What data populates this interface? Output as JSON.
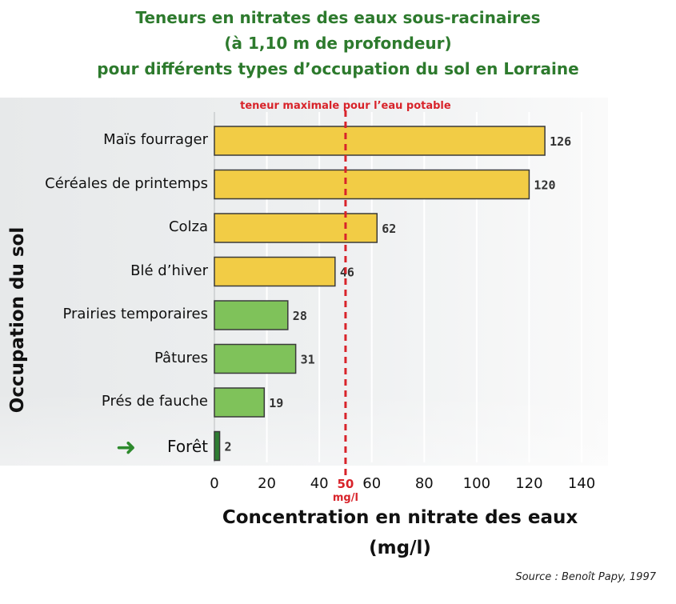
{
  "chart_data": {
    "type": "bar",
    "orientation": "horizontal",
    "title_lines": [
      "Teneurs en nitrates des eaux sous-racinaires",
      "(à 1,10 m de profondeur)",
      "pour différents types d’occupation du sol en Lorraine"
    ],
    "categories": [
      "Maïs fourrager",
      "Céréales de printemps",
      "Colza",
      "Blé d’hiver",
      "Prairies temporaires",
      "Pâtures",
      "Prés de fauche",
      "Forêt"
    ],
    "values": [
      126,
      120,
      62,
      46,
      28,
      31,
      19,
      2
    ],
    "value_labels": [
      "126",
      "120",
      "62",
      "46",
      "28",
      "31",
      "19",
      "2"
    ],
    "bar_colors": [
      "#f2cc45",
      "#f2cc45",
      "#f2cc45",
      "#f2cc45",
      "#7fc25a",
      "#7fc25a",
      "#7fc25a",
      "#2e7d32"
    ],
    "highlight_category": "Forêt",
    "xlim": [
      0,
      140
    ],
    "xticks": [
      "0",
      "20",
      "40",
      "60",
      "80",
      "100",
      "120",
      "140"
    ],
    "xtick_values": [
      0,
      20,
      40,
      60,
      80,
      100,
      120,
      140
    ],
    "xlabel_lines": [
      "Concentration en nitrate des eaux",
      "(mg/l)"
    ],
    "ylabel": "Occupation du sol",
    "reference_line": {
      "value": 50,
      "label": "teneur maximale pour l’eau potable",
      "value_label": "50",
      "unit_label": "mg/l",
      "color": "#d8232a"
    },
    "grid": true,
    "source": "Source : Benoît Papy, 1997"
  }
}
